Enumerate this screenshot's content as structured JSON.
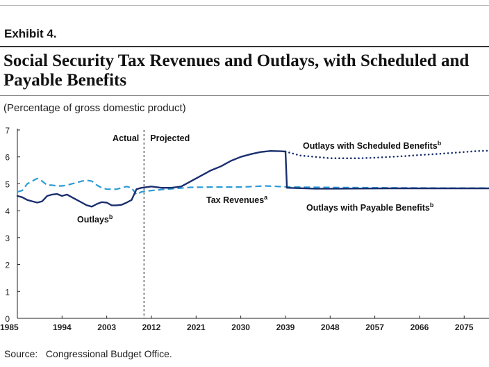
{
  "header": {
    "exhibit": "Exhibit 4.",
    "title": "Social Security Tax Revenues and Outlays, with Scheduled and Payable Benefits",
    "subtitle": "(Percentage of gross domestic product)"
  },
  "footer": {
    "source_label": "Source:",
    "source_text": "Congressional Budget Office."
  },
  "chart_data": {
    "type": "line",
    "title": "Social Security Tax Revenues and Outlays, with Scheduled and Payable Benefits",
    "ylabel": "(Percentage of gross domestic product)",
    "xlabel": "",
    "xlim": [
      1985,
      2080
    ],
    "ylim": [
      0,
      7
    ],
    "xticks": [
      1985,
      1994,
      2003,
      2012,
      2021,
      2030,
      2039,
      2048,
      2057,
      2066,
      2075
    ],
    "yticks": [
      0,
      1,
      2,
      3,
      4,
      5,
      6,
      7
    ],
    "grid": false,
    "divider": {
      "x": 2010.5,
      "left_label": "Actual",
      "right_label": "Projected"
    },
    "annotations": {
      "tax_revenues": "Tax Revenues",
      "tax_revenues_sup": "a",
      "outlays": "Outlays",
      "outlays_sup": "b",
      "scheduled": "Outlays with Scheduled Benefits",
      "scheduled_sup": "b",
      "payable": "Outlays with Payable Benefits",
      "payable_sup": "b"
    },
    "colors": {
      "revenues": "#2e9bd6",
      "outlays": "#1a2f6e",
      "axis": "#222222"
    },
    "series": [
      {
        "key": "revenues",
        "style": "dashed",
        "x": [
          1985,
          1986,
          1987,
          1988,
          1989,
          1990,
          1991,
          1992,
          1993,
          1994,
          1995,
          1996,
          1997,
          1998,
          1999,
          2000,
          2001,
          2002,
          2003,
          2004,
          2005,
          2006,
          2007,
          2008,
          2009,
          2010,
          2012,
          2015,
          2020,
          2025,
          2030,
          2035,
          2040,
          2050,
          2060,
          2070,
          2080
        ],
        "y": [
          4.7,
          4.75,
          5.0,
          5.1,
          5.2,
          5.1,
          4.95,
          4.95,
          4.92,
          4.92,
          4.95,
          5.0,
          5.05,
          5.1,
          5.13,
          5.1,
          4.95,
          4.85,
          4.8,
          4.8,
          4.8,
          4.85,
          4.9,
          4.85,
          4.6,
          4.7,
          4.75,
          4.8,
          4.87,
          4.88,
          4.88,
          4.92,
          4.88,
          4.86,
          4.85,
          4.84,
          4.84
        ]
      },
      {
        "key": "outlays",
        "style": "solid",
        "x": [
          1985,
          1986,
          1987,
          1988,
          1989,
          1990,
          1991,
          1992,
          1993,
          1994,
          1995,
          1996,
          1997,
          1998,
          1999,
          2000,
          2001,
          2002,
          2003,
          2004,
          2005,
          2006,
          2007,
          2008,
          2009,
          2010,
          2012,
          2014,
          2016,
          2018,
          2020,
          2022,
          2024,
          2026,
          2028,
          2030,
          2032,
          2034,
          2036,
          2038,
          2039
        ],
        "y": [
          4.55,
          4.5,
          4.4,
          4.35,
          4.3,
          4.35,
          4.55,
          4.6,
          4.62,
          4.55,
          4.6,
          4.5,
          4.4,
          4.3,
          4.2,
          4.15,
          4.25,
          4.32,
          4.3,
          4.2,
          4.2,
          4.22,
          4.3,
          4.4,
          4.8,
          4.85,
          4.9,
          4.85,
          4.85,
          4.9,
          5.1,
          5.3,
          5.5,
          5.65,
          5.85,
          6.0,
          6.1,
          6.18,
          6.22,
          6.21,
          6.2
        ]
      },
      {
        "key": "scheduled",
        "style": "dotted",
        "x": [
          2039,
          2042,
          2045,
          2048,
          2051,
          2054,
          2057,
          2060,
          2063,
          2066,
          2069,
          2072,
          2075,
          2078,
          2080
        ],
        "y": [
          6.2,
          6.05,
          6.0,
          5.95,
          5.95,
          5.95,
          5.97,
          6.0,
          6.03,
          6.07,
          6.1,
          6.14,
          6.18,
          6.22,
          6.23
        ]
      },
      {
        "key": "payable",
        "style": "solid",
        "x": [
          2039,
          2039.3,
          2045,
          2050,
          2060,
          2070,
          2080
        ],
        "y": [
          6.2,
          4.85,
          4.82,
          4.82,
          4.83,
          4.83,
          4.83
        ]
      }
    ]
  }
}
